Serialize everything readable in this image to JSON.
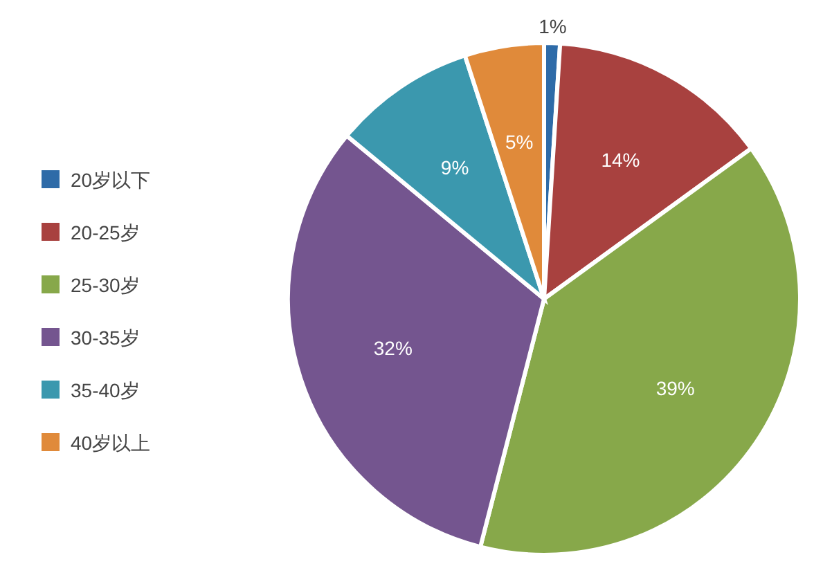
{
  "chart_data": {
    "type": "pie",
    "categories": [
      "20岁以下",
      "20-25岁",
      "25-30岁",
      "30-35岁",
      "35-40岁",
      "40岁以上"
    ],
    "values": [
      1,
      14,
      39,
      32,
      9,
      5
    ],
    "colors": [
      "#2e6ba8",
      "#a8413f",
      "#87a84a",
      "#74558f",
      "#3b98ae",
      "#e08a3a"
    ],
    "value_labels": [
      "1%",
      "14%",
      "39%",
      "32%",
      "9%",
      "5%"
    ],
    "legend": "left"
  }
}
